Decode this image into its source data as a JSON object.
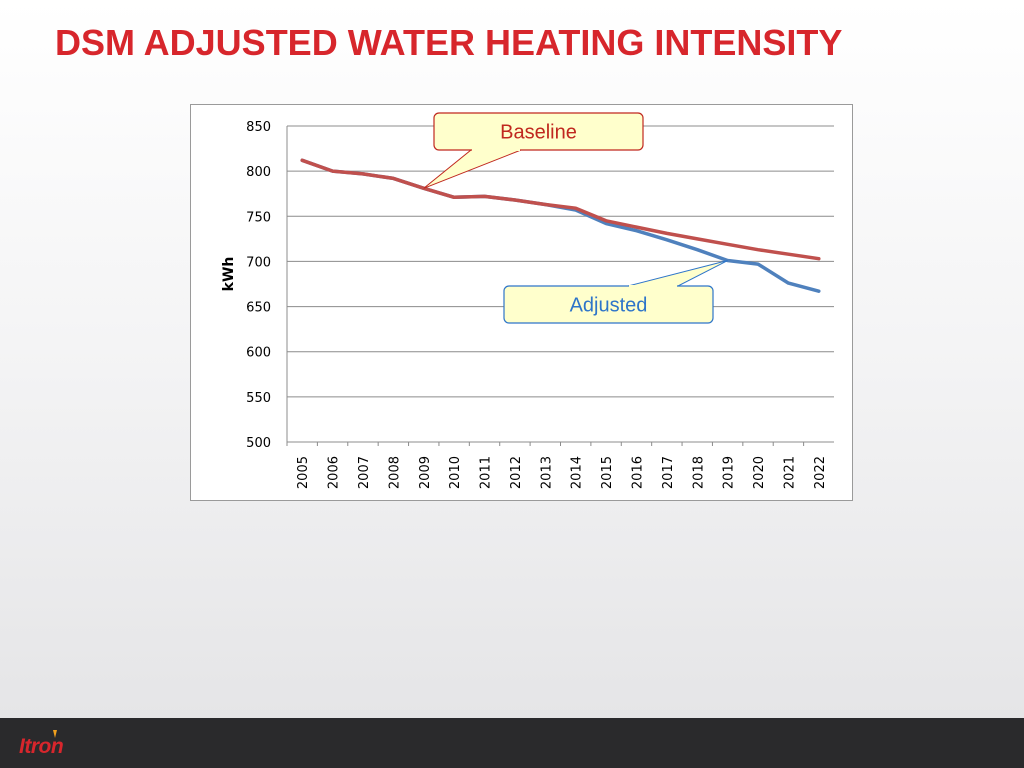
{
  "slide": {
    "title": "DSM ADJUSTED WATER HEATING INTENSITY",
    "logo_text": "Itron",
    "colors": {
      "title": "#d7262c",
      "baseline": "#c0504d",
      "adjusted": "#4f81bd",
      "footer": "#2a2a2c",
      "callout_fill": "#ffffcc"
    }
  },
  "chart_data": {
    "type": "line",
    "title": "",
    "xlabel": "",
    "ylabel": "kWh",
    "ylim": [
      500,
      850
    ],
    "yticks": [
      500,
      550,
      600,
      650,
      700,
      750,
      800,
      850
    ],
    "grid": true,
    "categories": [
      "2005",
      "2006",
      "2007",
      "2008",
      "2009",
      "2010",
      "2011",
      "2012",
      "2013",
      "2014",
      "2015",
      "2016",
      "2017",
      "2018",
      "2019",
      "2020",
      "2021",
      "2022"
    ],
    "series": [
      {
        "name": "Baseline",
        "color": "#c0504d",
        "values": [
          812,
          800,
          797,
          792,
          781,
          771,
          772,
          768,
          763,
          759,
          745,
          738,
          731,
          725,
          719,
          713,
          708,
          703
        ]
      },
      {
        "name": "Adjusted",
        "color": "#4f81bd",
        "values": [
          812,
          800,
          797,
          792,
          781,
          771,
          772,
          768,
          763,
          757,
          742,
          734,
          724,
          713,
          701,
          697,
          676,
          667
        ]
      }
    ],
    "annotations": [
      {
        "text": "Baseline",
        "series": "Baseline",
        "points_to": "2009"
      },
      {
        "text": "Adjusted",
        "series": "Adjusted",
        "points_to": "2019"
      }
    ]
  }
}
